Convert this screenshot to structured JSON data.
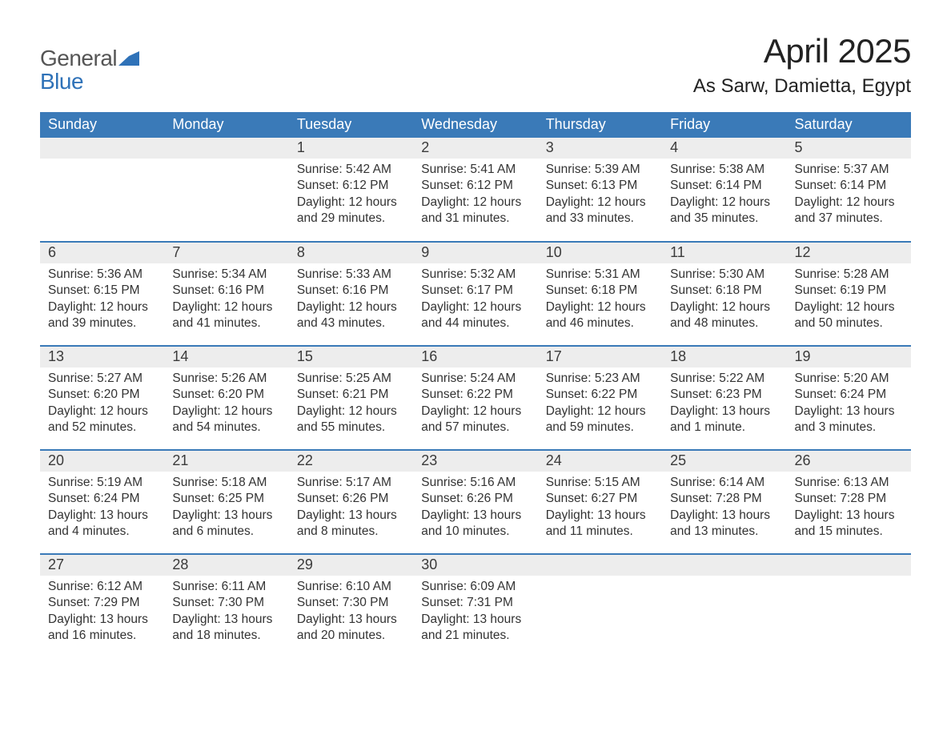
{
  "brand": {
    "general": "General",
    "blue": "Blue",
    "mark_color": "#2f72b8"
  },
  "header": {
    "month_title": "April 2025",
    "location": "As Sarw, Damietta, Egypt"
  },
  "colors": {
    "header_bg": "#3a7ab8",
    "header_text": "#ffffff",
    "daynum_bg": "#ededed",
    "row_border": "#3a7ab8",
    "body_text": "#333333",
    "background": "#ffffff"
  },
  "typography": {
    "month_title_fontsize": 42,
    "location_fontsize": 24,
    "header_cell_fontsize": 18,
    "daynum_fontsize": 18,
    "body_fontsize": 15.5
  },
  "calendar": {
    "type": "calendar-table",
    "days_of_week": [
      "Sunday",
      "Monday",
      "Tuesday",
      "Wednesday",
      "Thursday",
      "Friday",
      "Saturday"
    ],
    "weeks": [
      [
        null,
        null,
        {
          "n": "1",
          "sunrise": "Sunrise: 5:42 AM",
          "sunset": "Sunset: 6:12 PM",
          "day1": "Daylight: 12 hours",
          "day2": "and 29 minutes."
        },
        {
          "n": "2",
          "sunrise": "Sunrise: 5:41 AM",
          "sunset": "Sunset: 6:12 PM",
          "day1": "Daylight: 12 hours",
          "day2": "and 31 minutes."
        },
        {
          "n": "3",
          "sunrise": "Sunrise: 5:39 AM",
          "sunset": "Sunset: 6:13 PM",
          "day1": "Daylight: 12 hours",
          "day2": "and 33 minutes."
        },
        {
          "n": "4",
          "sunrise": "Sunrise: 5:38 AM",
          "sunset": "Sunset: 6:14 PM",
          "day1": "Daylight: 12 hours",
          "day2": "and 35 minutes."
        },
        {
          "n": "5",
          "sunrise": "Sunrise: 5:37 AM",
          "sunset": "Sunset: 6:14 PM",
          "day1": "Daylight: 12 hours",
          "day2": "and 37 minutes."
        }
      ],
      [
        {
          "n": "6",
          "sunrise": "Sunrise: 5:36 AM",
          "sunset": "Sunset: 6:15 PM",
          "day1": "Daylight: 12 hours",
          "day2": "and 39 minutes."
        },
        {
          "n": "7",
          "sunrise": "Sunrise: 5:34 AM",
          "sunset": "Sunset: 6:16 PM",
          "day1": "Daylight: 12 hours",
          "day2": "and 41 minutes."
        },
        {
          "n": "8",
          "sunrise": "Sunrise: 5:33 AM",
          "sunset": "Sunset: 6:16 PM",
          "day1": "Daylight: 12 hours",
          "day2": "and 43 minutes."
        },
        {
          "n": "9",
          "sunrise": "Sunrise: 5:32 AM",
          "sunset": "Sunset: 6:17 PM",
          "day1": "Daylight: 12 hours",
          "day2": "and 44 minutes."
        },
        {
          "n": "10",
          "sunrise": "Sunrise: 5:31 AM",
          "sunset": "Sunset: 6:18 PM",
          "day1": "Daylight: 12 hours",
          "day2": "and 46 minutes."
        },
        {
          "n": "11",
          "sunrise": "Sunrise: 5:30 AM",
          "sunset": "Sunset: 6:18 PM",
          "day1": "Daylight: 12 hours",
          "day2": "and 48 minutes."
        },
        {
          "n": "12",
          "sunrise": "Sunrise: 5:28 AM",
          "sunset": "Sunset: 6:19 PM",
          "day1": "Daylight: 12 hours",
          "day2": "and 50 minutes."
        }
      ],
      [
        {
          "n": "13",
          "sunrise": "Sunrise: 5:27 AM",
          "sunset": "Sunset: 6:20 PM",
          "day1": "Daylight: 12 hours",
          "day2": "and 52 minutes."
        },
        {
          "n": "14",
          "sunrise": "Sunrise: 5:26 AM",
          "sunset": "Sunset: 6:20 PM",
          "day1": "Daylight: 12 hours",
          "day2": "and 54 minutes."
        },
        {
          "n": "15",
          "sunrise": "Sunrise: 5:25 AM",
          "sunset": "Sunset: 6:21 PM",
          "day1": "Daylight: 12 hours",
          "day2": "and 55 minutes."
        },
        {
          "n": "16",
          "sunrise": "Sunrise: 5:24 AM",
          "sunset": "Sunset: 6:22 PM",
          "day1": "Daylight: 12 hours",
          "day2": "and 57 minutes."
        },
        {
          "n": "17",
          "sunrise": "Sunrise: 5:23 AM",
          "sunset": "Sunset: 6:22 PM",
          "day1": "Daylight: 12 hours",
          "day2": "and 59 minutes."
        },
        {
          "n": "18",
          "sunrise": "Sunrise: 5:22 AM",
          "sunset": "Sunset: 6:23 PM",
          "day1": "Daylight: 13 hours",
          "day2": "and 1 minute."
        },
        {
          "n": "19",
          "sunrise": "Sunrise: 5:20 AM",
          "sunset": "Sunset: 6:24 PM",
          "day1": "Daylight: 13 hours",
          "day2": "and 3 minutes."
        }
      ],
      [
        {
          "n": "20",
          "sunrise": "Sunrise: 5:19 AM",
          "sunset": "Sunset: 6:24 PM",
          "day1": "Daylight: 13 hours",
          "day2": "and 4 minutes."
        },
        {
          "n": "21",
          "sunrise": "Sunrise: 5:18 AM",
          "sunset": "Sunset: 6:25 PM",
          "day1": "Daylight: 13 hours",
          "day2": "and 6 minutes."
        },
        {
          "n": "22",
          "sunrise": "Sunrise: 5:17 AM",
          "sunset": "Sunset: 6:26 PM",
          "day1": "Daylight: 13 hours",
          "day2": "and 8 minutes."
        },
        {
          "n": "23",
          "sunrise": "Sunrise: 5:16 AM",
          "sunset": "Sunset: 6:26 PM",
          "day1": "Daylight: 13 hours",
          "day2": "and 10 minutes."
        },
        {
          "n": "24",
          "sunrise": "Sunrise: 5:15 AM",
          "sunset": "Sunset: 6:27 PM",
          "day1": "Daylight: 13 hours",
          "day2": "and 11 minutes."
        },
        {
          "n": "25",
          "sunrise": "Sunrise: 6:14 AM",
          "sunset": "Sunset: 7:28 PM",
          "day1": "Daylight: 13 hours",
          "day2": "and 13 minutes."
        },
        {
          "n": "26",
          "sunrise": "Sunrise: 6:13 AM",
          "sunset": "Sunset: 7:28 PM",
          "day1": "Daylight: 13 hours",
          "day2": "and 15 minutes."
        }
      ],
      [
        {
          "n": "27",
          "sunrise": "Sunrise: 6:12 AM",
          "sunset": "Sunset: 7:29 PM",
          "day1": "Daylight: 13 hours",
          "day2": "and 16 minutes."
        },
        {
          "n": "28",
          "sunrise": "Sunrise: 6:11 AM",
          "sunset": "Sunset: 7:30 PM",
          "day1": "Daylight: 13 hours",
          "day2": "and 18 minutes."
        },
        {
          "n": "29",
          "sunrise": "Sunrise: 6:10 AM",
          "sunset": "Sunset: 7:30 PM",
          "day1": "Daylight: 13 hours",
          "day2": "and 20 minutes."
        },
        {
          "n": "30",
          "sunrise": "Sunrise: 6:09 AM",
          "sunset": "Sunset: 7:31 PM",
          "day1": "Daylight: 13 hours",
          "day2": "and 21 minutes."
        },
        null,
        null,
        null
      ]
    ]
  }
}
